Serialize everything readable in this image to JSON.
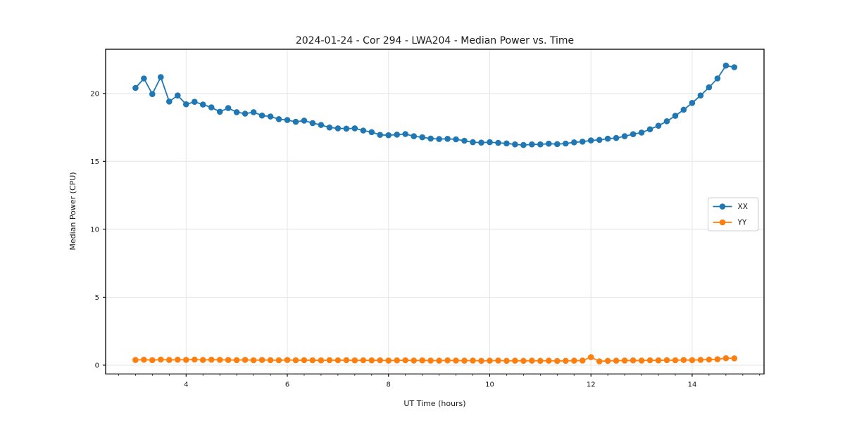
{
  "chart_data": {
    "type": "line",
    "title": "2024-01-24 - Cor 294 - LWA204 - Median Power vs. Time",
    "xlabel": "UT Time (hours)",
    "ylabel": "Median Power (CPU)",
    "x": [
      3.0,
      3.167,
      3.333,
      3.5,
      3.667,
      3.833,
      4.0,
      4.167,
      4.333,
      4.5,
      4.667,
      4.833,
      5.0,
      5.167,
      5.333,
      5.5,
      5.667,
      5.833,
      6.0,
      6.167,
      6.333,
      6.5,
      6.667,
      6.833,
      7.0,
      7.167,
      7.333,
      7.5,
      7.667,
      7.833,
      8.0,
      8.167,
      8.333,
      8.5,
      8.667,
      8.833,
      9.0,
      9.167,
      9.333,
      9.5,
      9.667,
      9.833,
      10.0,
      10.167,
      10.333,
      10.5,
      10.667,
      10.833,
      11.0,
      11.167,
      11.333,
      11.5,
      11.667,
      11.833,
      12.0,
      12.167,
      12.333,
      12.5,
      12.667,
      12.833,
      13.0,
      13.167,
      13.333,
      13.5,
      13.667,
      13.833,
      14.0,
      14.167,
      14.333,
      14.5,
      14.667,
      14.833
    ],
    "series": [
      {
        "name": "XX",
        "color": "#1f77b4",
        "values": [
          20.4,
          21.1,
          19.95,
          21.2,
          19.4,
          19.85,
          19.2,
          19.38,
          19.18,
          18.97,
          18.65,
          18.92,
          18.62,
          18.51,
          18.62,
          18.37,
          18.3,
          18.11,
          18.04,
          17.91,
          18.0,
          17.82,
          17.68,
          17.49,
          17.43,
          17.41,
          17.43,
          17.27,
          17.15,
          16.95,
          16.92,
          16.97,
          17.01,
          16.85,
          16.77,
          16.68,
          16.64,
          16.66,
          16.62,
          16.52,
          16.41,
          16.38,
          16.41,
          16.36,
          16.32,
          16.25,
          16.2,
          16.25,
          16.25,
          16.3,
          16.27,
          16.31,
          16.4,
          16.45,
          16.54,
          16.58,
          16.67,
          16.72,
          16.85,
          17.0,
          17.12,
          17.36,
          17.62,
          17.95,
          18.35,
          18.8,
          19.3,
          19.85,
          20.45,
          21.1,
          22.05,
          21.93
        ]
      },
      {
        "name": "YY",
        "color": "#ff7f0e",
        "values": [
          0.38,
          0.4,
          0.37,
          0.41,
          0.38,
          0.4,
          0.39,
          0.41,
          0.38,
          0.4,
          0.39,
          0.38,
          0.37,
          0.39,
          0.36,
          0.38,
          0.37,
          0.36,
          0.38,
          0.36,
          0.37,
          0.36,
          0.35,
          0.37,
          0.36,
          0.37,
          0.35,
          0.36,
          0.35,
          0.36,
          0.34,
          0.35,
          0.36,
          0.34,
          0.35,
          0.34,
          0.33,
          0.35,
          0.34,
          0.33,
          0.34,
          0.32,
          0.33,
          0.34,
          0.32,
          0.33,
          0.32,
          0.33,
          0.32,
          0.33,
          0.31,
          0.32,
          0.33,
          0.34,
          0.59,
          0.28,
          0.32,
          0.33,
          0.34,
          0.35,
          0.34,
          0.36,
          0.35,
          0.37,
          0.36,
          0.38,
          0.37,
          0.39,
          0.41,
          0.43,
          0.51,
          0.5
        ]
      }
    ],
    "xlim": [
      2.41,
      15.42
    ],
    "ylim": [
      -0.65,
      23.25
    ],
    "xticks": [
      4,
      6,
      8,
      10,
      12,
      14
    ],
    "yticks": [
      0,
      5,
      10,
      15,
      20
    ],
    "x_minor_interval": 0.33333,
    "grid": true,
    "legend": {
      "position": "center right",
      "entries": [
        "XX",
        "YY"
      ]
    },
    "colors": {
      "grid": "#e5e5e5",
      "spine": "#000000",
      "text": "#1a1a1a",
      "legend_border": "#cccccc",
      "legend_bg": "rgba(255,255,255,0.9)"
    }
  }
}
